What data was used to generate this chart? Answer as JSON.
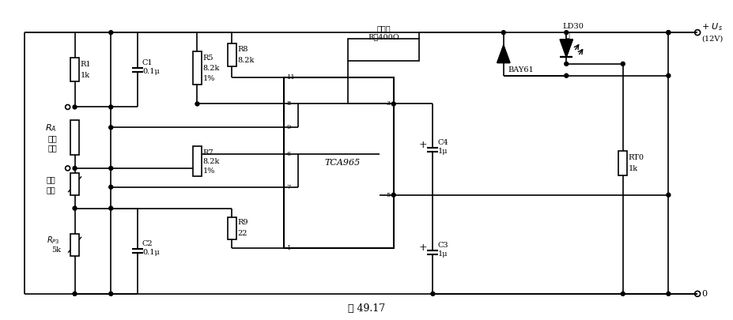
{
  "title": "图 49.17",
  "bg": "#ffffff",
  "lc": "#000000",
  "lw": 1.2,
  "figsize": [
    9.28,
    4.05
  ],
  "dpi": 100,
  "xlim": [
    0,
    928
  ],
  "ylim": [
    0,
    405
  ]
}
